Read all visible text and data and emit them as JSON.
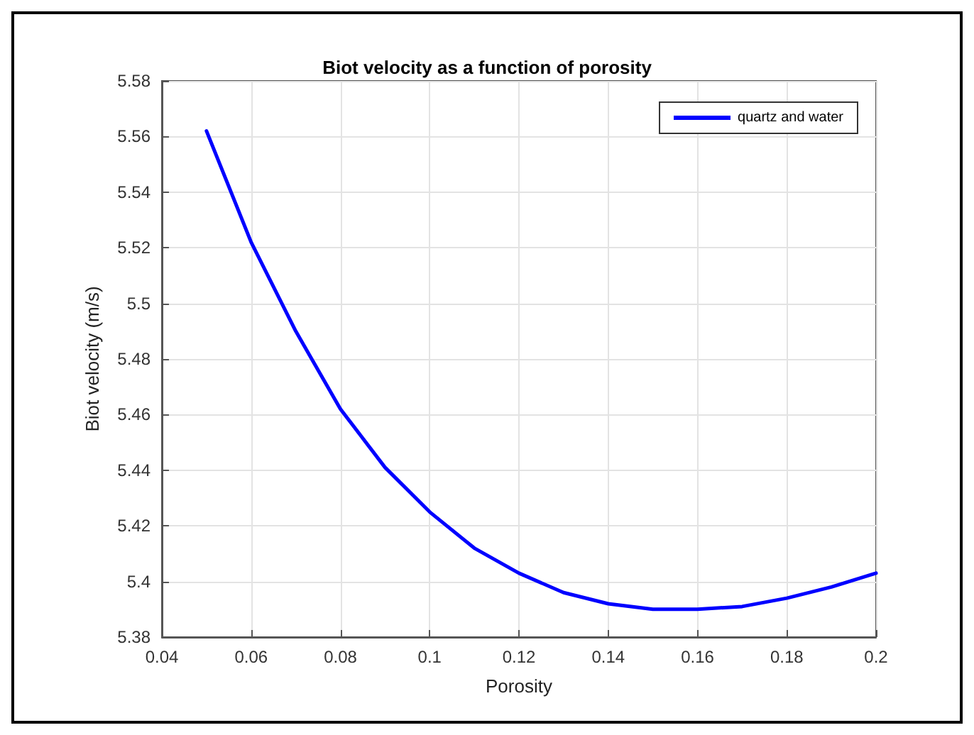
{
  "chart_data": {
    "type": "line",
    "title": "Biot velocity as a function of porosity",
    "xlabel": "Porosity",
    "ylabel": "Biot velocity (m/s)",
    "x": [
      0.05,
      0.06,
      0.07,
      0.08,
      0.09,
      0.1,
      0.11,
      0.12,
      0.13,
      0.14,
      0.15,
      0.16,
      0.17,
      0.18,
      0.19,
      0.2
    ],
    "series": [
      {
        "name": "quartz and water",
        "color": "#0000ff",
        "values": [
          5.562,
          5.522,
          5.49,
          5.462,
          5.441,
          5.425,
          5.412,
          5.403,
          5.396,
          5.392,
          5.39,
          5.39,
          5.391,
          5.394,
          5.398,
          5.403
        ]
      }
    ],
    "xlim": [
      0.04,
      0.2
    ],
    "xticks": [
      0.04,
      0.06,
      0.08,
      0.1,
      0.12,
      0.14,
      0.16,
      0.18,
      0.2
    ],
    "ylim": [
      5.38,
      5.58
    ],
    "yticks": [
      5.38,
      5.4,
      5.42,
      5.44,
      5.46,
      5.48,
      5.5,
      5.52,
      5.54,
      5.56,
      5.58
    ],
    "grid": true,
    "legend": "top right",
    "marker": "none",
    "line_style": "solid"
  }
}
